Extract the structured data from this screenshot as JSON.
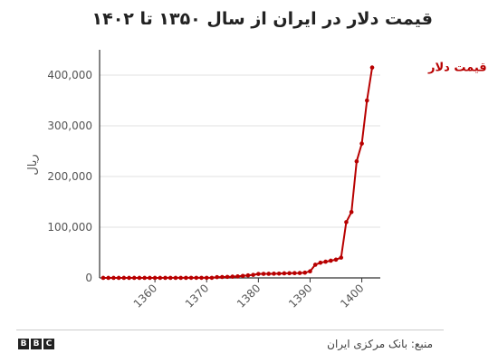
{
  "title": "قیمت دلار در ایران از سال ۱۳۵۰ تا ۱۴۰۲",
  "source": "منبع: بانک مرکزی ایران",
  "brand": [
    "B",
    "B",
    "C"
  ],
  "colors": {
    "series": "#b80000",
    "axis": "#333333",
    "tick_text": "#555555",
    "gridline": "#e0e0e0"
  },
  "chart_data": {
    "type": "line",
    "ylabel": "ریال",
    "xlabel": "",
    "ylim": [
      0,
      450000
    ],
    "xlim": [
      1350,
      1402
    ],
    "yticks": [
      0,
      100000,
      200000,
      300000,
      400000
    ],
    "ytick_labels": [
      "0",
      "100,000",
      "200,000",
      "300,000",
      "400,000"
    ],
    "xticks": [
      1360,
      1370,
      1380,
      1390,
      1400
    ],
    "xtick_labels": [
      "1360",
      "1370",
      "1380",
      "1390",
      "1400"
    ],
    "grid": true,
    "series": [
      {
        "name": "قیمت دلار",
        "x": [
          1350,
          1351,
          1352,
          1353,
          1354,
          1355,
          1356,
          1357,
          1358,
          1359,
          1360,
          1361,
          1362,
          1363,
          1364,
          1365,
          1366,
          1367,
          1368,
          1369,
          1370,
          1371,
          1372,
          1373,
          1374,
          1375,
          1376,
          1377,
          1378,
          1379,
          1380,
          1381,
          1382,
          1383,
          1384,
          1385,
          1386,
          1387,
          1388,
          1389,
          1390,
          1391,
          1392,
          1393,
          1394,
          1395,
          1396,
          1397,
          1398,
          1399,
          1400,
          1401,
          1402
        ],
        "values": [
          76,
          76,
          76,
          76,
          76,
          76,
          76,
          76,
          76,
          76,
          80,
          85,
          90,
          95,
          100,
          100,
          110,
          120,
          130,
          140,
          150,
          200,
          1500,
          1800,
          2000,
          2500,
          3000,
          4000,
          5000,
          6000,
          7800,
          8000,
          8100,
          8300,
          8500,
          9000,
          9200,
          9400,
          9700,
          10300,
          13000,
          26000,
          30000,
          32000,
          34000,
          36000,
          40000,
          110000,
          130000,
          230000,
          265000,
          350000,
          415000
        ]
      }
    ]
  }
}
